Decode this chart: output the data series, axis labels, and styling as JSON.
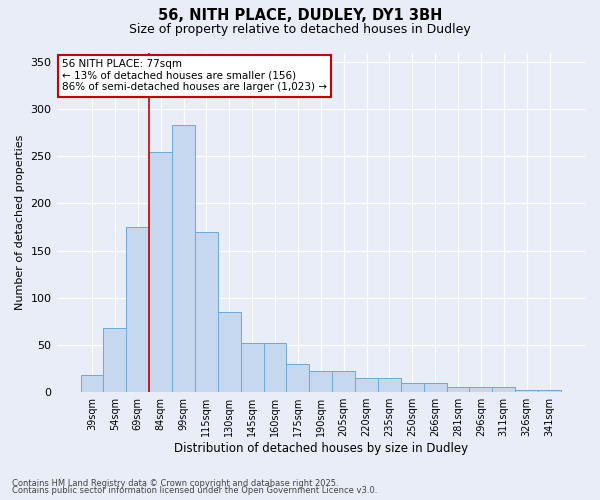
{
  "title1": "56, NITH PLACE, DUDLEY, DY1 3BH",
  "title2": "Size of property relative to detached houses in Dudley",
  "xlabel": "Distribution of detached houses by size in Dudley",
  "ylabel": "Number of detached properties",
  "categories": [
    "39sqm",
    "54sqm",
    "69sqm",
    "84sqm",
    "99sqm",
    "115sqm",
    "130sqm",
    "145sqm",
    "160sqm",
    "175sqm",
    "190sqm",
    "205sqm",
    "220sqm",
    "235sqm",
    "250sqm",
    "266sqm",
    "281sqm",
    "296sqm",
    "311sqm",
    "326sqm",
    "341sqm"
  ],
  "values": [
    18,
    68,
    175,
    255,
    283,
    170,
    85,
    52,
    52,
    30,
    22,
    22,
    15,
    15,
    10,
    10,
    6,
    6,
    5,
    2,
    2
  ],
  "bar_color": "#c5d8f0",
  "bar_edge_color": "#6aaad4",
  "vline_x": 2.5,
  "vline_color": "#cc0000",
  "annotation_text": "56 NITH PLACE: 77sqm\n← 13% of detached houses are smaller (156)\n86% of semi-detached houses are larger (1,023) →",
  "annotation_box_facecolor": "#ffffff",
  "annotation_box_edgecolor": "#cc0000",
  "bg_color": "#e8edf8",
  "plot_bg_color": "#e8edf8",
  "grid_color": "#ffffff",
  "footer1": "Contains HM Land Registry data © Crown copyright and database right 2025.",
  "footer2": "Contains public sector information licensed under the Open Government Licence v3.0.",
  "ylim": [
    0,
    360
  ],
  "yticks": [
    0,
    50,
    100,
    150,
    200,
    250,
    300,
    350
  ]
}
